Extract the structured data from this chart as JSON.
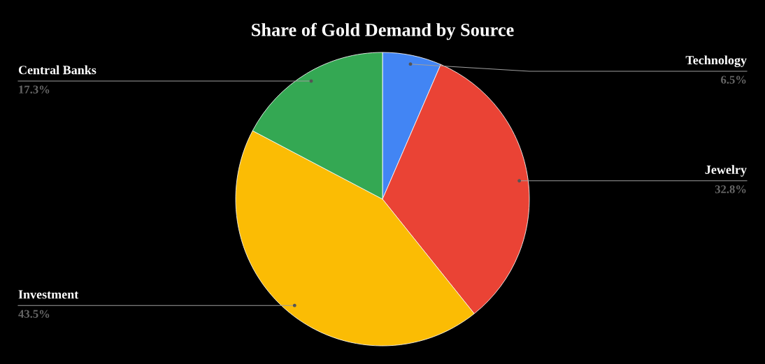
{
  "chart_data": {
    "type": "pie",
    "title": "Share of Gold Demand by Source",
    "categories": [
      "Technology",
      "Jewelry",
      "Investment",
      "Central Banks"
    ],
    "values": [
      6.5,
      32.8,
      43.5,
      17.3
    ],
    "colors": [
      "#4285f4",
      "#ea4335",
      "#fbbc04",
      "#34a853"
    ],
    "value_labels": [
      "6.5%",
      "32.8%",
      "43.5%",
      "17.3%"
    ]
  }
}
